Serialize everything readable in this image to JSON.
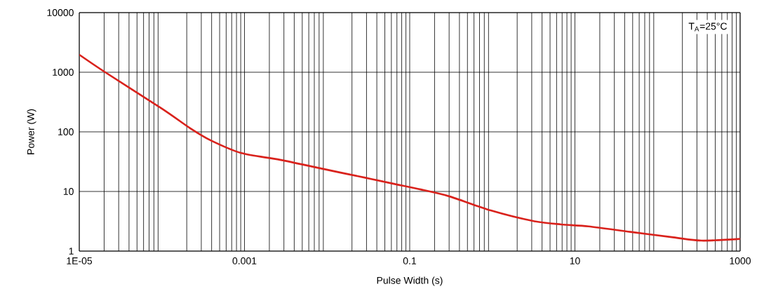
{
  "chart_data": {
    "type": "line",
    "xlabel": "Pulse Width (s)",
    "ylabel": "Power (W)",
    "annotations": [
      "T$_{A}$=25°C"
    ],
    "log": "xy",
    "grid": true,
    "xlim": [
      1e-05,
      1000
    ],
    "ylim": [
      1,
      10000
    ],
    "xticks": [
      {
        "value": 1e-05,
        "label": "1E-05"
      },
      0.001,
      0.1,
      10,
      1000
    ],
    "yticks": [
      1,
      10,
      100,
      1000,
      10000
    ],
    "series": [
      {
        "color": "#d9221c",
        "x": [
          1e-05,
          2.06e-05,
          0.0001,
          0.00022,
          0.00039,
          0.00092,
          0.0027,
          0.0088,
          0.029,
          0.063,
          0.136,
          0.3,
          0.96,
          3.1,
          6.8,
          14.6,
          47,
          155,
          340,
          1000
        ],
        "values": [
          1970,
          1000,
          245,
          115,
          72,
          44,
          34,
          24,
          17,
          13.5,
          10.8,
          8.3,
          4.8,
          3.2,
          2.8,
          2.6,
          2.1,
          1.7,
          1.5,
          1.6
        ]
      }
    ]
  }
}
